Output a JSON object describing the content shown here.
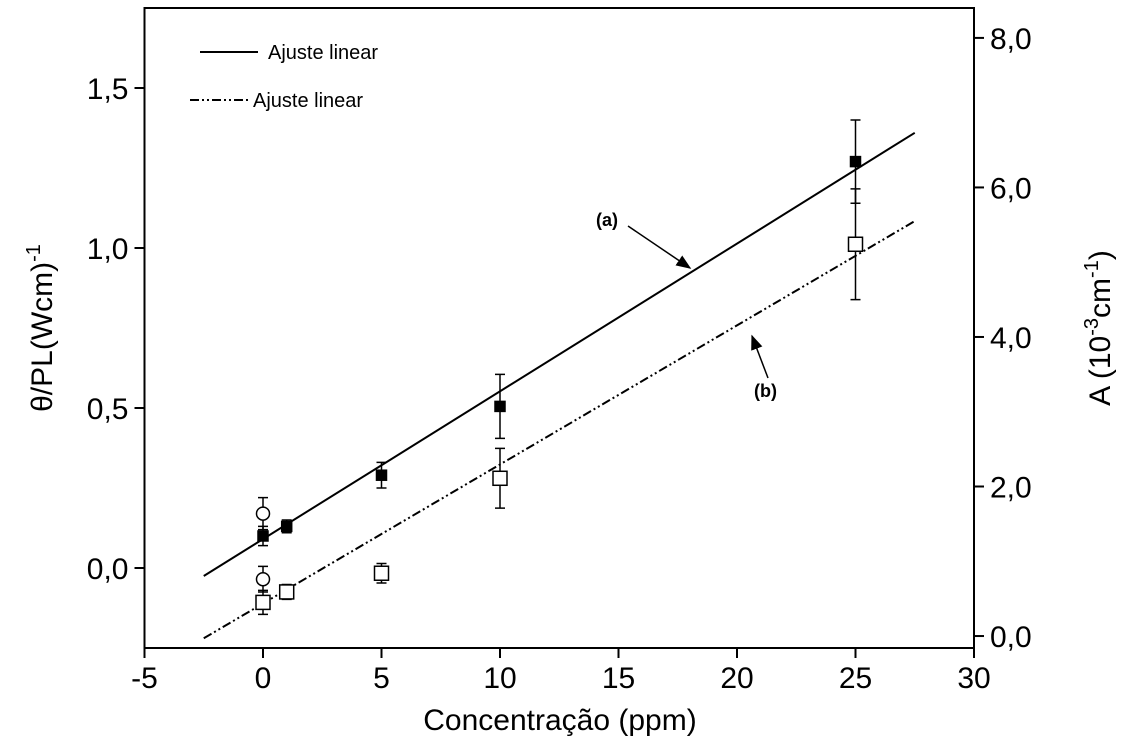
{
  "chart_data": {
    "type": "scatter",
    "xlabel": "Concentração (ppm)",
    "ylabel_parts": [
      "θ/PL(Wcm)",
      "-1"
    ],
    "y2label_parts": [
      "A (10",
      "-3",
      "cm",
      "-1",
      ")"
    ],
    "xlim": [
      -5,
      30
    ],
    "xticks": [
      -5,
      0,
      5,
      10,
      15,
      20,
      25,
      30
    ],
    "ylim": [
      -0.25,
      1.75
    ],
    "yticks": [
      {
        "value": 0,
        "label": "0,0"
      },
      {
        "value": 0.5,
        "label": "0,5"
      },
      {
        "value": 1,
        "label": "1,0"
      },
      {
        "value": 1.5,
        "label": "1,5"
      }
    ],
    "y2lim": [
      -0.16,
      8.4
    ],
    "y2ticks": [
      {
        "value": 0,
        "label": "0,0"
      },
      {
        "value": 2,
        "label": "2,0"
      },
      {
        "value": 4,
        "label": "4,0"
      },
      {
        "value": 6,
        "label": "6,0"
      },
      {
        "value": 8,
        "label": "8,0"
      }
    ],
    "series": [
      {
        "name": "Ajuste linear",
        "kind": "line",
        "dash": "solid",
        "color": "#000000",
        "x": [
          -2.5,
          27.5
        ],
        "values": [
          -0.025,
          1.36
        ]
      },
      {
        "name": "Ajuste linear",
        "kind": "line",
        "dash": "dashdotdot",
        "color": "#000000",
        "axis": "y2",
        "x": [
          -2.5,
          27.5
        ],
        "values": [
          -0.03,
          5.55
        ]
      },
      {
        "kind": "marker",
        "marker": "filled-square",
        "color": "#000000",
        "x": [
          0,
          1,
          5,
          10,
          25
        ],
        "values": [
          0.1,
          0.13,
          0.29,
          0.505,
          1.27
        ],
        "errors": [
          0.03,
          0.02,
          0.04,
          0.1,
          0.13
        ]
      },
      {
        "kind": "marker",
        "marker": "open-square",
        "color": "#000000",
        "axis": "y2",
        "x": [
          0,
          1,
          5,
          10,
          25
        ],
        "values": [
          0.45,
          0.59,
          0.84,
          2.11,
          5.24
        ],
        "errors": [
          0.16,
          0.1,
          0.13,
          0.4,
          0.74
        ]
      },
      {
        "kind": "marker",
        "marker": "open-circle",
        "color": "#000000",
        "x": [
          0,
          0
        ],
        "values": [
          0.17,
          -0.035
        ],
        "errors": [
          0.05,
          0.04
        ]
      }
    ],
    "annotations": [
      "(a)",
      "(b)"
    ]
  }
}
